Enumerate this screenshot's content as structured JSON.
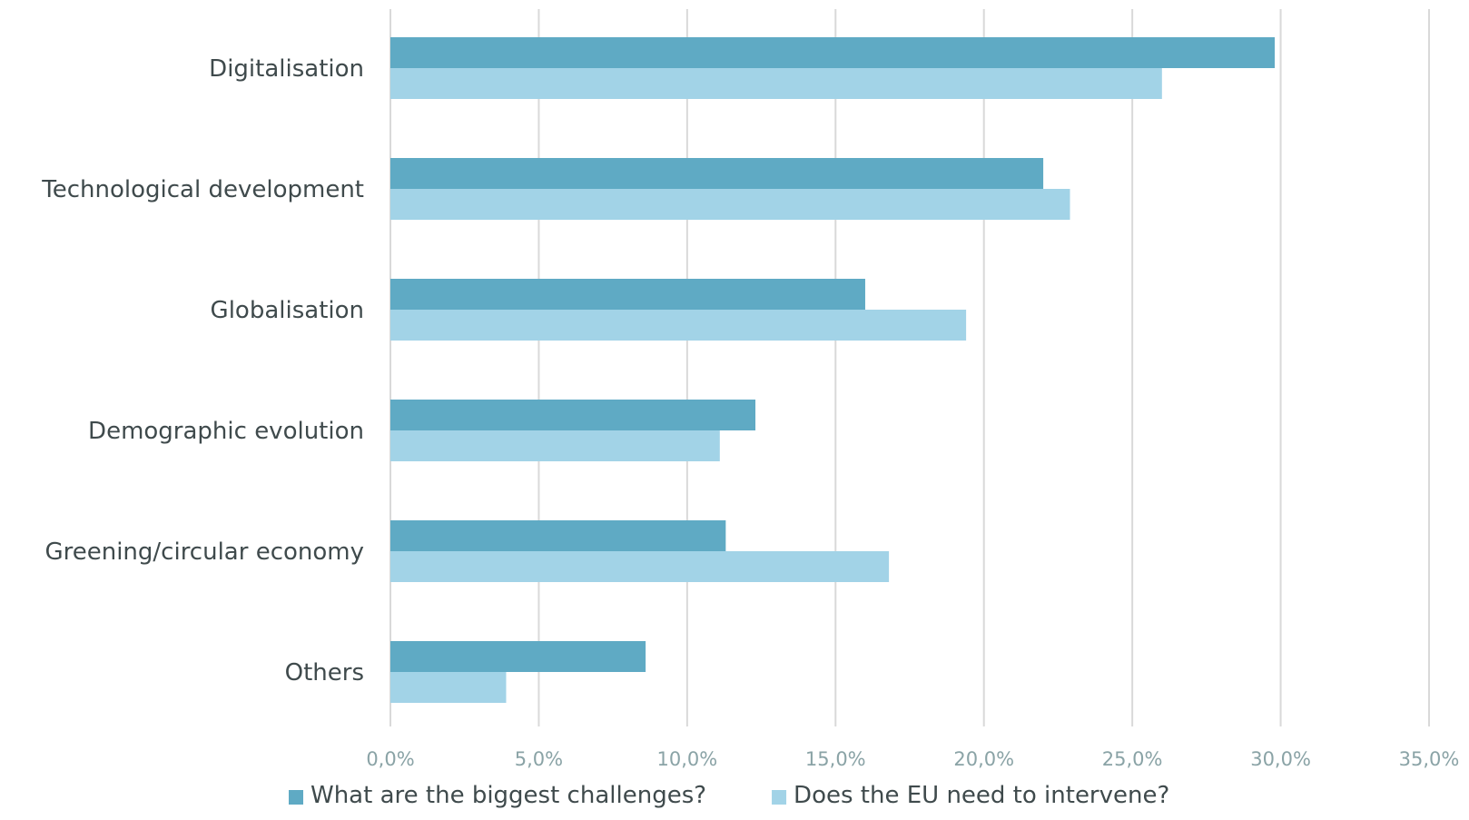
{
  "chart_data": {
    "type": "bar",
    "orientation": "horizontal",
    "categories": [
      "Digitalisation",
      "Technological development",
      "Globalisation",
      "Demographic evolution",
      "Greening/circular economy",
      "Others"
    ],
    "series": [
      {
        "name": "What are the biggest challenges?",
        "color": "#5faac4",
        "values": [
          29.8,
          22.0,
          16.0,
          12.3,
          11.3,
          8.6
        ]
      },
      {
        "name": "Does the EU need to intervene?",
        "color": "#a2d3e7",
        "values": [
          26.0,
          22.9,
          19.4,
          11.1,
          16.8,
          3.9
        ]
      }
    ],
    "xlim": [
      0,
      35
    ],
    "xticks": [
      0,
      5,
      10,
      15,
      20,
      25,
      30,
      35
    ],
    "xtick_labels": [
      "0,0%",
      "5,0%",
      "10,0%",
      "15,0%",
      "20,0%",
      "25,0%",
      "30,0%",
      "35,0%"
    ],
    "title": "",
    "xlabel": "",
    "ylabel": "",
    "grid": "vertical",
    "legend_position": "bottom"
  }
}
